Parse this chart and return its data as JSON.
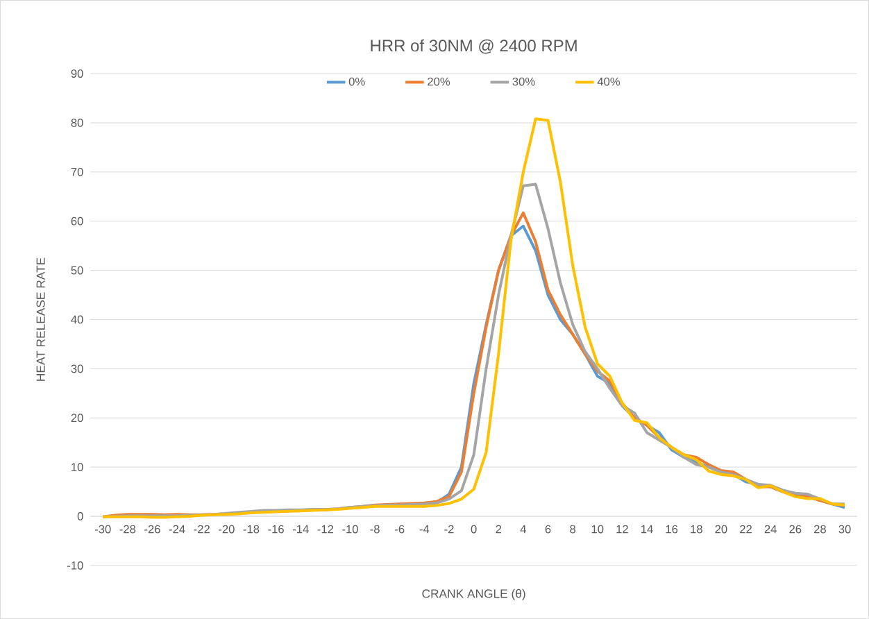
{
  "chart_data": {
    "type": "line",
    "title": "HRR of 30NM @ 2400 RPM",
    "xlabel": "CRANK ANGLE (θ)",
    "ylabel": "HEAT RELEASE RATE",
    "x": [
      -30,
      -29,
      -28,
      -27,
      -26,
      -25,
      -24,
      -23,
      -22,
      -21,
      -20,
      -19,
      -18,
      -17,
      -16,
      -15,
      -14,
      -13,
      -12,
      -11,
      -10,
      -9,
      -8,
      -7,
      -6,
      -5,
      -4,
      -3,
      -2,
      -1,
      0,
      1,
      2,
      3,
      4,
      5,
      6,
      7,
      8,
      9,
      10,
      11,
      12,
      13,
      14,
      15,
      16,
      17,
      18,
      19,
      20,
      21,
      22,
      23,
      24,
      25,
      26,
      27,
      28,
      29,
      30
    ],
    "series": [
      {
        "name": "0%",
        "color": "#5b9bd5",
        "values": [
          null,
          null,
          null,
          null,
          null,
          null,
          null,
          null,
          null,
          null,
          null,
          null,
          null,
          null,
          null,
          null,
          null,
          null,
          null,
          null,
          null,
          null,
          null,
          null,
          null,
          null,
          null,
          2.8,
          4.5,
          10,
          27,
          39,
          50,
          57,
          59,
          54,
          45,
          40,
          37,
          33,
          28.5,
          27,
          22.5,
          20,
          18.5,
          17,
          13.5,
          12,
          11,
          10,
          9,
          8.5,
          7,
          6.5,
          6,
          5,
          4.5,
          4,
          3.3,
          2.5,
          1.8
        ]
      },
      {
        "name": "20%",
        "color": "#ed7d31",
        "values": [
          -0.1,
          0.2,
          0.4,
          0.4,
          0.4,
          0.3,
          0.4,
          0.3,
          0.3,
          0.4,
          0.5,
          0.6,
          0.8,
          0.9,
          1.0,
          1.1,
          1.2,
          1.3,
          1.3,
          1.5,
          1.8,
          2.0,
          2.3,
          2.4,
          2.5,
          2.6,
          2.7,
          3.0,
          4.0,
          9,
          25,
          38.5,
          50,
          57,
          61.7,
          55.8,
          46,
          41,
          37,
          33,
          29.5,
          27.5,
          23,
          20,
          18.5,
          16,
          14,
          12.5,
          12,
          10.5,
          9.3,
          9,
          7.5,
          6,
          6,
          5,
          4.2,
          4,
          3.2,
          2.5,
          2.2
        ]
      },
      {
        "name": "30%",
        "color": "#a5a5a5",
        "values": [
          -0.1,
          0.0,
          0.1,
          0.1,
          0.1,
          0.1,
          0.1,
          0.2,
          0.3,
          0.4,
          0.6,
          0.8,
          1.0,
          1.2,
          1.2,
          1.3,
          1.3,
          1.4,
          1.4,
          1.5,
          1.8,
          2.0,
          2.2,
          2.3,
          2.3,
          2.4,
          2.5,
          2.7,
          3.5,
          5.2,
          12.5,
          30,
          45,
          57,
          67.2,
          67.5,
          58.5,
          47.5,
          39,
          33.5,
          30,
          26,
          22.5,
          21,
          17,
          15.5,
          14,
          12,
          10.5,
          10,
          9,
          8.5,
          7.5,
          6.5,
          6.3,
          5.3,
          4.7,
          4.5,
          3.5,
          2.5,
          2.5
        ]
      },
      {
        "name": "40%",
        "color": "#ffc000",
        "values": [
          -0.1,
          -0.1,
          -0.1,
          -0.1,
          -0.2,
          -0.2,
          -0.1,
          0.0,
          0.2,
          0.3,
          0.4,
          0.5,
          0.7,
          0.8,
          0.9,
          1.0,
          1.1,
          1.2,
          1.3,
          1.4,
          1.6,
          1.8,
          2.0,
          2.0,
          2.0,
          2.0,
          2.0,
          2.2,
          2.6,
          3.5,
          5.5,
          13,
          33,
          56,
          70,
          80.8,
          80.5,
          68,
          51,
          38.5,
          31,
          28.5,
          23,
          19.5,
          19,
          16,
          14,
          12.5,
          11.5,
          9.2,
          8.5,
          8.2,
          7.5,
          5.8,
          6.2,
          5,
          4,
          3.6,
          3.6,
          2.5,
          2.3
        ]
      }
    ],
    "xlim": [
      -31,
      31
    ],
    "xticks": [
      -30,
      -28,
      -26,
      -24,
      -22,
      -20,
      -18,
      -16,
      -14,
      -12,
      -10,
      -8,
      -6,
      -4,
      -2,
      0,
      2,
      4,
      6,
      8,
      10,
      12,
      14,
      16,
      18,
      20,
      22,
      24,
      26,
      28,
      30
    ],
    "ylim": [
      -10,
      90
    ],
    "yticks": [
      -10,
      0,
      10,
      20,
      30,
      40,
      50,
      60,
      70,
      80,
      90
    ],
    "grid": "y",
    "legend": "top",
    "marker": "none",
    "line_style": "solid"
  }
}
